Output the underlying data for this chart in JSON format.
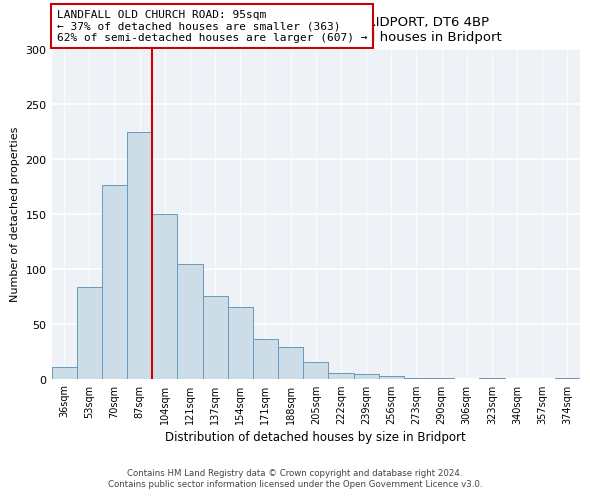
{
  "title": "LANDFALL, OLD CHURCH ROAD, BRIDPORT, DT6 4BP",
  "subtitle": "Size of property relative to detached houses in Bridport",
  "xlabel": "Distribution of detached houses by size in Bridport",
  "ylabel": "Number of detached properties",
  "categories": [
    "36sqm",
    "53sqm",
    "70sqm",
    "87sqm",
    "104sqm",
    "121sqm",
    "137sqm",
    "154sqm",
    "171sqm",
    "188sqm",
    "205sqm",
    "222sqm",
    "239sqm",
    "256sqm",
    "273sqm",
    "290sqm",
    "306sqm",
    "323sqm",
    "340sqm",
    "357sqm",
    "374sqm"
  ],
  "values": [
    11,
    83,
    176,
    224,
    150,
    104,
    75,
    65,
    36,
    29,
    15,
    5,
    4,
    2,
    1,
    1,
    0,
    1,
    0,
    0,
    1
  ],
  "bar_color": "#ccdde8",
  "bar_edge_color": "#6699bb",
  "marker_line_color": "#cc0000",
  "annotation_line1": "LANDFALL OLD CHURCH ROAD: 95sqm",
  "annotation_line2": "← 37% of detached houses are smaller (363)",
  "annotation_line3": "62% of semi-detached houses are larger (607) →",
  "ylim": [
    0,
    300
  ],
  "yticks": [
    0,
    50,
    100,
    150,
    200,
    250,
    300
  ],
  "footer_line1": "Contains HM Land Registry data © Crown copyright and database right 2024.",
  "footer_line2": "Contains public sector information licensed under the Open Government Licence v3.0.",
  "background_color": "#eef2f7"
}
